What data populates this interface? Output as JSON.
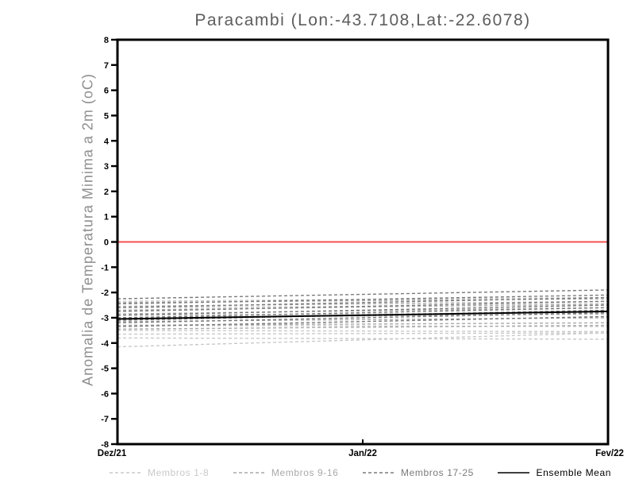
{
  "chart_data": {
    "type": "line",
    "title": "Paracambi (Lon:-43.7108,Lat:-22.6078)",
    "xlabel": "",
    "ylabel": "Anomalia de Temperatura Minima a 2m (oC)",
    "x_ticks": [
      "Dez/21",
      "Jan/22",
      "Fev/22"
    ],
    "x_range": [
      "Dez/21",
      "Fev/22"
    ],
    "ylim": [
      -8,
      8
    ],
    "y_tick_step": 1,
    "grid": false,
    "background": "#ffffff",
    "frame_color": "#000000",
    "zero_line": {
      "value": 0,
      "color": "#f3524f"
    },
    "member_groups": [
      {
        "label": "Membros 1-8",
        "color": "#c9c9c9",
        "style": "dashed",
        "members": [
          [
            -2.35,
            -2.2
          ],
          [
            -2.6,
            -2.5
          ],
          [
            -2.9,
            -2.8
          ],
          [
            -3.3,
            -3.35
          ],
          [
            -3.5,
            -3.55
          ],
          [
            -3.65,
            -3.6
          ],
          [
            -3.8,
            -3.85
          ],
          [
            -4.15,
            -3.6
          ]
        ]
      },
      {
        "label": "Membros 9-16",
        "color": "#a9a9a9",
        "style": "dashed",
        "members": [
          [
            -2.4,
            -2.25
          ],
          [
            -2.55,
            -2.35
          ],
          [
            -2.7,
            -2.45
          ],
          [
            -2.85,
            -2.6
          ],
          [
            -3.0,
            -2.85
          ],
          [
            -3.15,
            -3.0
          ],
          [
            -3.3,
            -3.2
          ],
          [
            -3.45,
            -3.3
          ]
        ]
      },
      {
        "label": "Membros 17-25",
        "color": "#7a7a7a",
        "style": "dashed",
        "members": [
          [
            -2.25,
            -1.9
          ],
          [
            -2.45,
            -2.1
          ],
          [
            -2.6,
            -2.2
          ],
          [
            -2.75,
            -2.35
          ],
          [
            -2.9,
            -2.5
          ],
          [
            -3.0,
            -2.6
          ],
          [
            -3.1,
            -2.7
          ],
          [
            -3.2,
            -2.8
          ],
          [
            -3.35,
            -2.95
          ]
        ]
      }
    ],
    "ensemble_mean": {
      "label": "Ensemble Mean",
      "color": "#000000",
      "style": "solid",
      "values": [
        -3.05,
        -2.75
      ]
    }
  },
  "legend": {
    "position": "bottom",
    "items": [
      {
        "label": "Membros 1-8",
        "color": "#c9c9c9",
        "style": "dashed"
      },
      {
        "label": "Membros 9-16",
        "color": "#a9a9a9",
        "style": "dashed"
      },
      {
        "label": "Membros 17-25",
        "color": "#7a7a7a",
        "style": "dashed"
      },
      {
        "label": "Ensemble Mean",
        "color": "#000000",
        "style": "solid"
      }
    ]
  }
}
